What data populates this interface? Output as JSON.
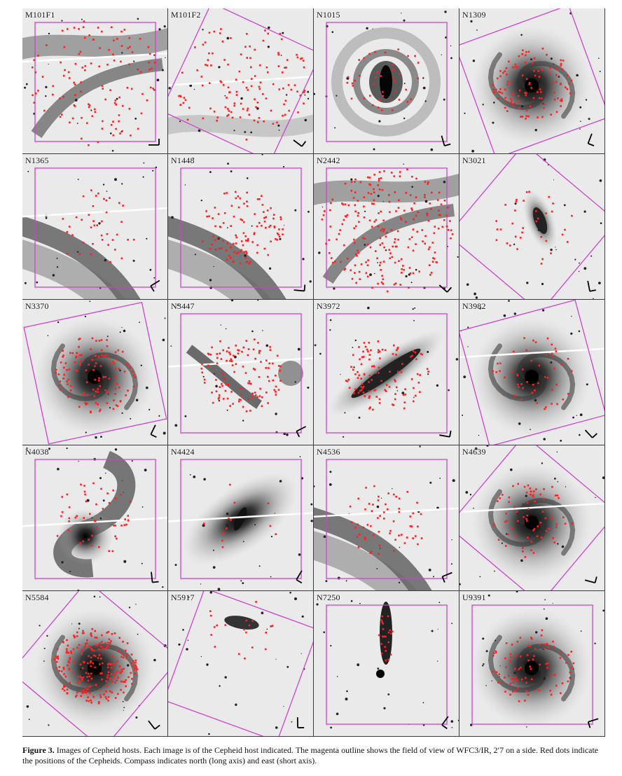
{
  "caption": {
    "label": "Figure 3.",
    "text": "Images of Cepheid hosts. Each image is of the Cepheid host indicated. The magenta outline shows the field of view of WFC3/IR, 2′7 on a side. Red dots indicate the positions of the Cepheids. Compass indicates north (long axis) and east (short axis)."
  },
  "colors": {
    "outline": "#cc44cc",
    "cepheid": "#ff2020",
    "galaxy": "#1a1a1a"
  },
  "panels": [
    {
      "label": "M101F1",
      "style": "arm-field",
      "outline_rot": 0,
      "stripe": true,
      "density": 120
    },
    {
      "label": "M101F2",
      "style": "faint-field",
      "outline_rot": 25,
      "stripe": true,
      "density": 130
    },
    {
      "label": "N1015",
      "style": "ring-bar",
      "outline_rot": 0,
      "stripe": false,
      "density": 40
    },
    {
      "label": "N1309",
      "style": "spiral",
      "outline_rot": -20,
      "stripe": false,
      "density": 110
    },
    {
      "label": "N1365",
      "style": "big-arm",
      "outline_rot": 0,
      "stripe": true,
      "density": 40
    },
    {
      "label": "N1448",
      "style": "edge-arm",
      "outline_rot": 0,
      "stripe": false,
      "density": 110
    },
    {
      "label": "N2442",
      "style": "arm-field",
      "outline_rot": 0,
      "stripe": false,
      "density": 230
    },
    {
      "label": "N3021",
      "style": "compact",
      "outline_rot": 40,
      "stripe": false,
      "density": 35
    },
    {
      "label": "N3370",
      "style": "spiral",
      "outline_rot": -12,
      "stripe": false,
      "density": 120
    },
    {
      "label": "N3447",
      "style": "irregular",
      "outline_rot": 0,
      "stripe": true,
      "density": 120
    },
    {
      "label": "N3972",
      "style": "edge-on",
      "outline_rot": 0,
      "stripe": false,
      "density": 110
    },
    {
      "label": "N3982",
      "style": "face-on",
      "outline_rot": -15,
      "stripe": true,
      "density": 50
    },
    {
      "label": "N4038",
      "style": "antennae",
      "outline_rot": 0,
      "stripe": true,
      "density": 50
    },
    {
      "label": "N4424",
      "style": "smooth",
      "outline_rot": 0,
      "stripe": true,
      "density": 12
    },
    {
      "label": "N4536",
      "style": "big-arm",
      "outline_rot": 0,
      "stripe": true,
      "density": 60
    },
    {
      "label": "N4639",
      "style": "spiral",
      "outline_rot": 40,
      "stripe": true,
      "density": 70
    },
    {
      "label": "N5584",
      "style": "spiral",
      "outline_rot": 40,
      "stripe": false,
      "density": 240
    },
    {
      "label": "N5917",
      "style": "small",
      "outline_rot": 20,
      "stripe": false,
      "density": 20
    },
    {
      "label": "N7250",
      "style": "vertical",
      "outline_rot": 0,
      "stripe": false,
      "density": 22
    },
    {
      "label": "U9391",
      "style": "face-on",
      "outline_rot": 0,
      "stripe": false,
      "density": 90
    }
  ]
}
